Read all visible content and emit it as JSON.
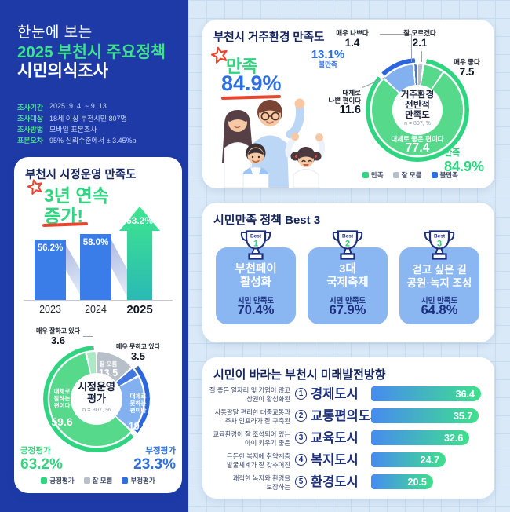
{
  "header": {
    "line1": "한눈에 보는",
    "line2": "2025 부천시 주요정책",
    "line3": "시민의식조사",
    "info": [
      {
        "label": "조사기간",
        "value": "2025. 9. 4. ~ 9. 13."
      },
      {
        "label": "조사대상",
        "value": "18세 이상 부천시민 807명"
      },
      {
        "label": "조사방법",
        "value": "모바일 표본조사"
      },
      {
        "label": "표본오차",
        "value": "95% 신뢰수준에서 ± 3.45%p"
      }
    ]
  },
  "admin": {
    "title": "부천시 시정운영 만족도",
    "badge_line1": "3년 연속",
    "badge_line2": "증가!",
    "bars": [
      {
        "year": "2023",
        "display": "56.2%"
      },
      {
        "year": "2024",
        "display": "58.0%"
      },
      {
        "year": "2025",
        "display": "63.2%"
      }
    ],
    "donut": {
      "center_title": "시정운영\n평가",
      "n": "n = 807, %",
      "very_good_label": "매우 잘하고 있다",
      "very_good_value": "3.6",
      "very_bad_label": "매우 못하고 있다",
      "very_bad_value": "3.5",
      "good_label": "대체로\n잘하는\n편이다",
      "good_value": "59.6",
      "dontknow_label": "잘 모름",
      "dontknow_value": "13.5",
      "bad_label": "대체로\n못하는\n편이다",
      "bad_value": "19.8",
      "positive_label": "긍정평가",
      "positive_value": "63.2%",
      "negative_label": "부정평가",
      "negative_value": "23.3%",
      "legend": [
        "긍정평가",
        "잘 모름",
        "부정평가"
      ]
    }
  },
  "living": {
    "title": "부천시 거주환경 만족도",
    "headline_label": "만족",
    "headline_value": "84.9%",
    "dissatisfied_value": "13.1%",
    "dissatisfied_label": "불만족",
    "donut": {
      "center_title": "거주환경\n전반적\n만족도",
      "n": "n = 807, %",
      "very_bad_label": "매우 나쁘다",
      "very_bad_value": "1.4",
      "dontknow_label": "잘 모르겠다",
      "dontknow_value": "2.1",
      "very_good_label": "매우 좋다",
      "very_good_value": "7.5",
      "bad_label": "대체로\n나쁜 편이다",
      "bad_value": "11.6",
      "good_label": "대체로 좋은 편이다",
      "good_value": "77.4",
      "satisfied_label": "만족",
      "satisfied_value": "84.9%",
      "legend": [
        "만족",
        "잘 모름",
        "불만족"
      ]
    }
  },
  "best3": {
    "title": "시민만족 정책 Best 3",
    "badge": "Best",
    "items": [
      {
        "rank": "1",
        "name": "부천페이\n활성화",
        "metric": "시민 만족도",
        "value": "70.4%"
      },
      {
        "rank": "2",
        "name": "3대\n국제축제",
        "metric": "시민 만족도",
        "value": "67.9%"
      },
      {
        "rank": "3",
        "name": "걷고 싶은 길\n공원·녹지 조성",
        "metric": "시민 만족도",
        "value": "64.8%"
      }
    ]
  },
  "future": {
    "title": "시민이 바라는 부천시 미래발전방향",
    "max": 36.4,
    "rows": [
      {
        "desc": "질 좋은 일자리 및 기업이 많고\n상권이 활성화된",
        "num": "1",
        "name": "경제도시",
        "value": 36.4
      },
      {
        "desc": "사통팔달 편리한 대중교통과\n주차 인프라가 잘 구축된",
        "num": "2",
        "name": "교통편의도시",
        "value": 35.7
      },
      {
        "desc": "교육환경이 잘 조성되어 있는\n아이 키우기 좋은",
        "num": "3",
        "name": "교육도시",
        "value": 32.6
      },
      {
        "desc": "든든한 복지에 취약계층\n발굴체계가 잘 갖추어진",
        "num": "4",
        "name": "복지도시",
        "value": 24.7
      },
      {
        "desc": "쾌적한 녹지와 환경을\n보장하는",
        "num": "5",
        "name": "환경도시",
        "value": 20.5
      }
    ]
  },
  "colors": {
    "navy_bg": "#1d3aa6",
    "green": "#3fdc8c",
    "green_text": "#2fd57f",
    "blue": "#2e6fe0",
    "light_blue_segment": "#83b1f0",
    "gray_segment": "#b7bfc8",
    "card_blue": "#8ab6f2",
    "accent_red": "#e8452e"
  },
  "chart_data": [
    {
      "id": "city-admin-trend",
      "type": "bar",
      "title": "부천시 시정운영 만족도",
      "annotation": "3년 연속 증가!",
      "categories": [
        "2023",
        "2024",
        "2025"
      ],
      "values": [
        56.2,
        58.0,
        63.2
      ],
      "unit": "%"
    },
    {
      "id": "city-admin-evaluation",
      "type": "pie",
      "title": "시정운영 평가",
      "note": "n = 807, %",
      "segments": [
        {
          "label": "잘 모름",
          "value": 13.5,
          "color": "#b7bfc8"
        },
        {
          "label": "매우 못하고 있다",
          "value": 3.5,
          "color": "#4377e0"
        },
        {
          "label": "대체로 못하는 편이다",
          "value": 19.8,
          "color": "#83b1f0"
        },
        {
          "label": "대체로 잘하는 편이다",
          "value": 59.6,
          "color": "#57d98c"
        },
        {
          "label": "매우 잘하고 있다",
          "value": 3.6,
          "color": "#a9eac5"
        }
      ],
      "groups": [
        {
          "label": "긍정평가",
          "value": 63.2
        },
        {
          "label": "잘 모름",
          "value": 13.5
        },
        {
          "label": "부정평가",
          "value": 23.3
        }
      ],
      "arcs": [
        {
          "start": 13.5,
          "end": 36.8,
          "color": "#2b66e0"
        },
        {
          "start": 36.8,
          "end": 100,
          "color": "#2ed47f"
        }
      ]
    },
    {
      "id": "living-environment-satisfaction",
      "type": "pie",
      "title": "거주환경 전반적 만족도",
      "note": "n = 807, %",
      "segments": [
        {
          "label": "잘 모르겠다",
          "value": 2.1,
          "color": "#b7bfc8"
        },
        {
          "label": "매우 좋다",
          "value": 7.5,
          "color": "#57d98c"
        },
        {
          "label": "대체로 좋은 편이다",
          "value": 77.4,
          "color": "#57d98c"
        },
        {
          "label": "대체로 나쁜 편이다",
          "value": 11.6,
          "color": "#83b1f0"
        },
        {
          "label": "매우 나쁘다",
          "value": 1.4,
          "color": "#4377e0"
        }
      ],
      "groups": [
        {
          "label": "만족",
          "value": 84.9
        },
        {
          "label": "잘 모름",
          "value": 2.1
        },
        {
          "label": "불만족",
          "value": 13.1
        }
      ],
      "arcs": [
        {
          "start": 2.1,
          "end": 87.0,
          "color": "#2ed47f"
        },
        {
          "start": 87.0,
          "end": 100,
          "color": "#2b66e0"
        }
      ]
    },
    {
      "id": "best3-policies",
      "type": "bar",
      "title": "시민만족 정책 Best 3",
      "categories": [
        "부천페이 활성화",
        "3대 국제축제",
        "걷고 싶은 길 공원·녹지 조성"
      ],
      "values": [
        70.4,
        67.9,
        64.8
      ],
      "unit": "% 시민 만족도"
    },
    {
      "id": "future-direction",
      "type": "bar",
      "title": "시민이 바라는 부천시 미래발전방향",
      "categories": [
        "경제도시",
        "교통편의도시",
        "교육도시",
        "복지도시",
        "환경도시"
      ],
      "values": [
        36.4,
        35.7,
        32.6,
        24.7,
        20.5
      ],
      "unit": "%"
    }
  ]
}
